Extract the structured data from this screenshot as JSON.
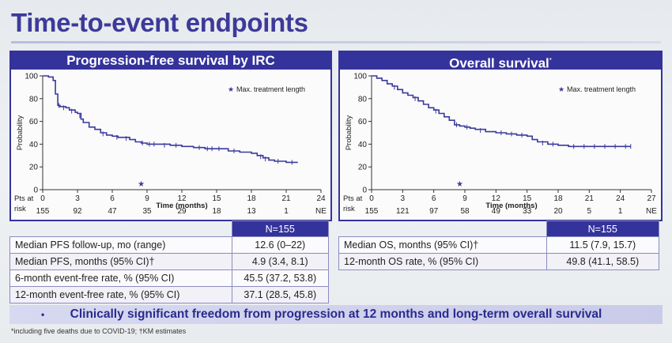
{
  "title": "Time-to-event endpoints",
  "chart_data": [
    {
      "type": "line",
      "title": "Progression-free survival by IRC",
      "xlabel": "Time (months)",
      "ylabel": "Probability",
      "xlim": [
        0,
        24
      ],
      "ylim": [
        0,
        100
      ],
      "xticks": [
        0,
        3,
        6,
        9,
        12,
        15,
        18,
        21,
        24
      ],
      "yticks": [
        0,
        20,
        40,
        60,
        80,
        100
      ],
      "legend": "Max. treatment length",
      "marker_x": 8.5,
      "series": [
        {
          "values": [
            [
              0,
              100
            ],
            [
              0.5,
              99
            ],
            [
              0.9,
              96
            ],
            [
              1.1,
              84
            ],
            [
              1.3,
              74
            ],
            [
              1.5,
              73
            ],
            [
              2,
              72
            ],
            [
              2.3,
              70
            ],
            [
              2.8,
              68
            ],
            [
              3,
              67
            ],
            [
              3.3,
              62
            ],
            [
              3.5,
              59
            ],
            [
              4,
              55
            ],
            [
              4.5,
              53
            ],
            [
              5,
              50
            ],
            [
              5.5,
              48
            ],
            [
              6,
              47
            ],
            [
              6.5,
              46
            ],
            [
              7,
              46
            ],
            [
              7.5,
              44
            ],
            [
              8,
              42
            ],
            [
              8.5,
              41
            ],
            [
              9,
              40
            ],
            [
              10,
              40
            ],
            [
              11,
              39
            ],
            [
              12,
              38
            ],
            [
              13,
              37
            ],
            [
              14,
              36
            ],
            [
              15,
              36
            ],
            [
              16,
              34
            ],
            [
              17,
              33
            ],
            [
              18,
              32
            ],
            [
              18.5,
              30
            ],
            [
              19,
              28
            ],
            [
              19.5,
              26
            ],
            [
              20,
              25
            ],
            [
              21,
              24
            ],
            [
              22,
              24
            ]
          ]
        }
      ],
      "censor_marks": [
        [
          1.4,
          74
        ],
        [
          1.8,
          72
        ],
        [
          2.5,
          69
        ],
        [
          3.2,
          65
        ],
        [
          5.2,
          49
        ],
        [
          6.4,
          46
        ],
        [
          7.2,
          45
        ],
        [
          8.6,
          41
        ],
        [
          9.2,
          40
        ],
        [
          9.6,
          40
        ],
        [
          10.5,
          39
        ],
        [
          11.5,
          39
        ],
        [
          13.5,
          37
        ],
        [
          14.2,
          36
        ],
        [
          14.6,
          36
        ],
        [
          15.2,
          36
        ],
        [
          16.5,
          34
        ],
        [
          18.8,
          29
        ],
        [
          19.2,
          27
        ],
        [
          20.3,
          25
        ],
        [
          21.5,
          24
        ]
      ],
      "risk_label": [
        "Pts at",
        "risk"
      ],
      "risk_x": [
        0,
        3,
        6,
        9,
        12,
        15,
        18,
        21,
        24
      ],
      "risk_values": [
        "155",
        "92",
        "47",
        "35",
        "29",
        "18",
        "13",
        "1",
        "NE"
      ]
    },
    {
      "type": "line",
      "title": "Overall survival",
      "title_sup": "*",
      "xlabel": "Time (months)",
      "ylabel": "Probability",
      "xlim": [
        0,
        27
      ],
      "ylim": [
        0,
        100
      ],
      "xticks": [
        0,
        3,
        6,
        9,
        12,
        15,
        18,
        21,
        24,
        27
      ],
      "yticks": [
        0,
        20,
        40,
        60,
        80,
        100
      ],
      "legend": "Max. treatment length",
      "marker_x": 8.5,
      "series": [
        {
          "values": [
            [
              0,
              100
            ],
            [
              0.5,
              98
            ],
            [
              1,
              96
            ],
            [
              1.5,
              93
            ],
            [
              2,
              91
            ],
            [
              2.5,
              88
            ],
            [
              3,
              85
            ],
            [
              3.5,
              83
            ],
            [
              4,
              81
            ],
            [
              4.5,
              78
            ],
            [
              5,
              75
            ],
            [
              5.5,
              72
            ],
            [
              6,
              70
            ],
            [
              6.5,
              67
            ],
            [
              7,
              64
            ],
            [
              7.5,
              61
            ],
            [
              8,
              57
            ],
            [
              8.5,
              56
            ],
            [
              9,
              55
            ],
            [
              9.5,
              54
            ],
            [
              10,
              53
            ],
            [
              11,
              51
            ],
            [
              12,
              50
            ],
            [
              13,
              49
            ],
            [
              14,
              48
            ],
            [
              15,
              47
            ],
            [
              15.5,
              44
            ],
            [
              16,
              42
            ],
            [
              17,
              40
            ],
            [
              18,
              39
            ],
            [
              19,
              38
            ],
            [
              20,
              38
            ],
            [
              21,
              38
            ],
            [
              22,
              38
            ],
            [
              23,
              38
            ],
            [
              24,
              38
            ],
            [
              25,
              38
            ]
          ]
        }
      ],
      "censor_marks": [
        [
          2.2,
          90
        ],
        [
          4.2,
          80
        ],
        [
          6.2,
          69
        ],
        [
          8.2,
          57
        ],
        [
          9.2,
          55
        ],
        [
          10.5,
          52
        ],
        [
          12.5,
          50
        ],
        [
          13.5,
          49
        ],
        [
          14.5,
          48
        ],
        [
          16.5,
          41
        ],
        [
          17.5,
          40
        ],
        [
          19.5,
          38
        ],
        [
          20.5,
          38
        ],
        [
          21.5,
          38
        ],
        [
          22.5,
          38
        ],
        [
          23.5,
          38
        ],
        [
          24.5,
          38
        ],
        [
          25,
          38
        ]
      ],
      "risk_label": [
        "Pts at",
        "risk"
      ],
      "risk_x": [
        0,
        3,
        6,
        9,
        12,
        15,
        18,
        21,
        24,
        27
      ],
      "risk_values": [
        "155",
        "121",
        "97",
        "58",
        "49",
        "33",
        "20",
        "5",
        "1",
        "NE"
      ]
    }
  ],
  "pfs_table": {
    "header": "N=155",
    "rows": [
      {
        "label": "Median PFS follow-up, mo (range)",
        "value": "12.6 (0–22)"
      },
      {
        "label": "Median PFS, months (95% CI)†",
        "value": "4.9 (3.4, 8.1)"
      },
      {
        "label": "6-month event-free rate, % (95% CI)",
        "value": "45.5 (37.2, 53.8)"
      },
      {
        "label": "12-month event-free rate, % (95% CI)",
        "value": "37.1 (28.5, 45.8)"
      }
    ]
  },
  "os_table": {
    "header": "N=155",
    "rows": [
      {
        "label": "Median OS, months (95% CI)†",
        "value": "11.5 (7.9, 15.7)"
      },
      {
        "label": "12-month OS rate, % (95% CI)",
        "value": "49.8 (41.1, 58.5)"
      }
    ]
  },
  "banner": {
    "bullet": "•",
    "text": "Clinically significant freedom from progression at 12 months and long-term overall survival"
  },
  "footnote": "*including five deaths due to COVID-19; †KM estimates",
  "colors": {
    "brand": "#34339b",
    "curve": "#3a3a9c",
    "title": "#3d3a9a"
  }
}
